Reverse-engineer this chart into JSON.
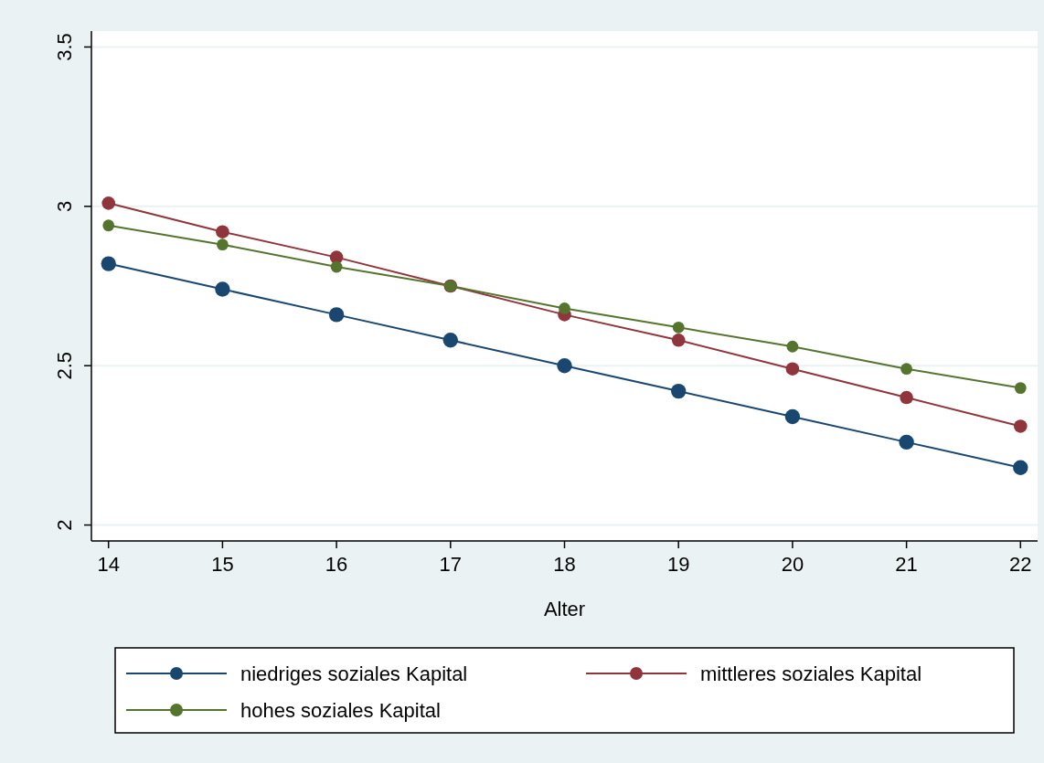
{
  "chart_data": {
    "type": "line",
    "xlabel": "Alter",
    "x": [
      14,
      15,
      16,
      17,
      18,
      19,
      20,
      21,
      22
    ],
    "series": [
      {
        "name": "niedriges soziales Kapital",
        "color": "#1a476f",
        "values": [
          2.82,
          2.74,
          2.66,
          2.58,
          2.5,
          2.42,
          2.34,
          2.26,
          2.18
        ]
      },
      {
        "name": "mittleres soziales Kapital",
        "color": "#90353b",
        "values": [
          3.01,
          2.92,
          2.84,
          2.75,
          2.66,
          2.58,
          2.49,
          2.4,
          2.31
        ]
      },
      {
        "name": "hohes soziales Kapital",
        "color": "#55752f",
        "values": [
          2.94,
          2.88,
          2.81,
          2.75,
          2.68,
          2.62,
          2.56,
          2.49,
          2.43
        ]
      }
    ],
    "xlim": [
      13.85,
      22.15
    ],
    "xticks": [
      14,
      15,
      16,
      17,
      18,
      19,
      20,
      21,
      22
    ],
    "ylim": [
      1.95,
      3.55
    ],
    "yticks": [
      2,
      2.5,
      3,
      3.5
    ],
    "grid": "y",
    "legend": "bottom",
    "marker": "circle",
    "line_style": "solid"
  }
}
